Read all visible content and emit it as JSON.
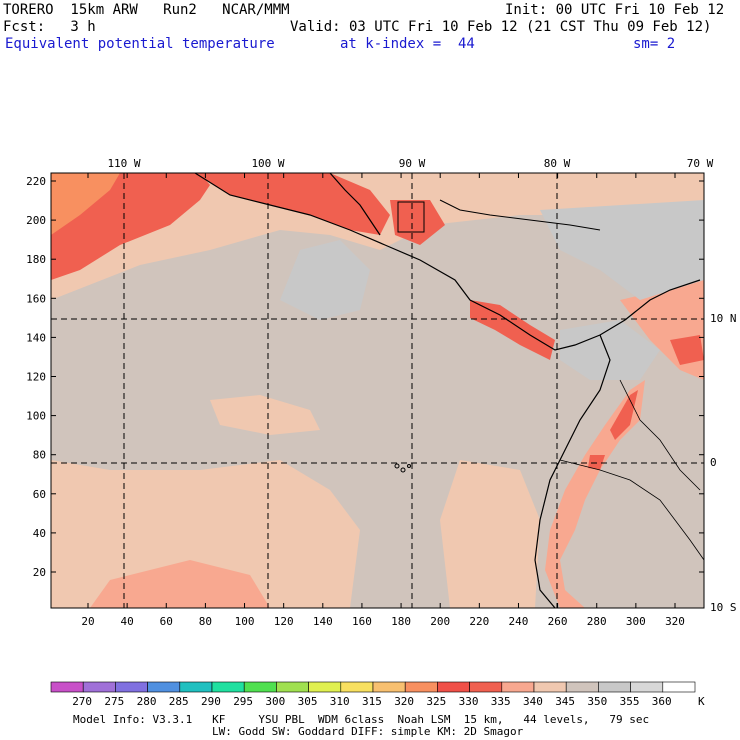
{
  "header": {
    "model": "TORERO  15km ARW   Run2   NCAR/MMM",
    "init": "Init: 00 UTC Fri 10 Feb 12",
    "fcst": "Fcst:   3 h",
    "valid": "Valid: 03 UTC Fri 10 Feb 12 (21 CST Thu 09 Feb 12)",
    "field": "Equivalent potential temperature",
    "level": "at k-index =  44",
    "smooth": "sm= 2"
  },
  "axes": {
    "top_lon": [
      "110 W",
      "100 W",
      "90 W",
      "80 W",
      "70 W"
    ],
    "right_lat": [
      "10 N",
      "0",
      "10 S"
    ],
    "left_y": [
      "220",
      "200",
      "180",
      "160",
      "140",
      "120",
      "100",
      "80",
      "60",
      "40",
      "20"
    ],
    "bottom_x": [
      "20",
      "40",
      "60",
      "80",
      "100",
      "120",
      "140",
      "160",
      "180",
      "200",
      "220",
      "240",
      "260",
      "280",
      "300",
      "320"
    ]
  },
  "colorbar": {
    "labels": [
      "270",
      "275",
      "280",
      "285",
      "290",
      "295",
      "300",
      "305",
      "310",
      "315",
      "320",
      "325",
      "330",
      "335",
      "340",
      "345",
      "350",
      "355",
      "360"
    ],
    "unit": "K",
    "colors": [
      "#c850c8",
      "#a070d8",
      "#8070e0",
      "#5090e0",
      "#20c0c0",
      "#20e0a0",
      "#50e050",
      "#a0e050",
      "#e0f050",
      "#f8e060",
      "#f8c070",
      "#f89060",
      "#f05048",
      "#f06050",
      "#f8a890",
      "#f0c8b0",
      "#d0c4bc",
      "#c8c8c8",
      "#d8d8d8",
      "#ffffff"
    ]
  },
  "map_colors": {
    "warm_peach": "#f0c8b0",
    "gray_tan": "#d0c4bc",
    "light_gray": "#c8c8c8",
    "salmon": "#f8a890",
    "red": "#f06050",
    "orange": "#f89060"
  },
  "footer": {
    "line1": "Model Info: V3.3.1   KF     YSU PBL  WDM 6class  Noah LSM  15 km,   44 levels,   79 sec",
    "line2": "LW: Godd SW: Goddard DIFF: simple KM: 2D Smagor"
  }
}
